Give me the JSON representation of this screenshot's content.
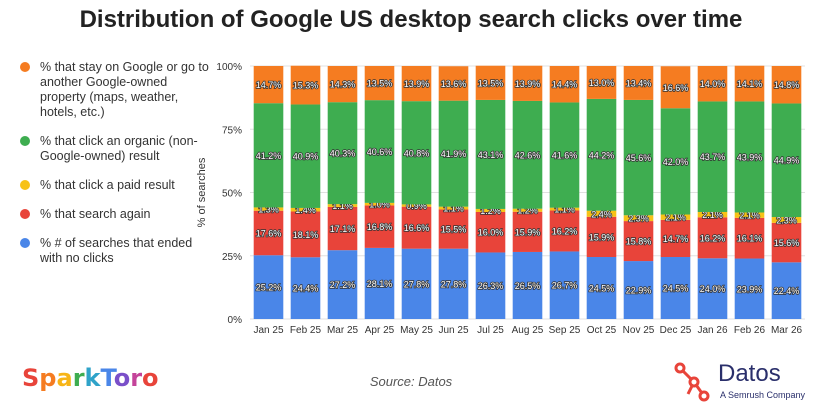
{
  "colors": {
    "stay_google": "#f57c21",
    "organic": "#3ead50",
    "paid": "#f7c217",
    "search_again": "#e8443a",
    "no_clicks": "#4a86e8",
    "grid": "#e0e0e0",
    "text": "#333333"
  },
  "legend": [
    {
      "label": "% that stay on Google or go to another Google-owned property (maps, weather, hotels, etc.)",
      "color": "#f57c21"
    },
    {
      "label": "% that click an organic (non-Google-owned) result",
      "color": "#3ead50"
    },
    {
      "label": "% that click a paid result",
      "color": "#f7c217"
    },
    {
      "label": "% that search again",
      "color": "#e8443a"
    },
    {
      "label": "% # of searches that ended with no clicks",
      "color": "#4a86e8"
    }
  ],
  "source": "Source: Datos",
  "logos": {
    "sparktoro": "SparkToro",
    "datos_name": "Datos",
    "datos_sub": "A Semrush Company"
  },
  "chart_data": {
    "type": "bar",
    "stacked": true,
    "title": "Distribution of Google US desktop search clicks over time",
    "ylabel": "% of searches",
    "xlabel": "",
    "ylim": [
      0,
      100
    ],
    "yticks": [
      "0%",
      "25%",
      "50%",
      "75%",
      "100%"
    ],
    "categories": [
      "Jan 25",
      "Feb 25",
      "Mar 25",
      "Apr 25",
      "May 25",
      "Jun 25",
      "Jul 25",
      "Aug 25",
      "Sep 25",
      "Oct 25",
      "Nov 25",
      "Dec 25",
      "Jan 26",
      "Feb 26",
      "Mar 26"
    ],
    "series": [
      {
        "name": "% # of searches that ended with no clicks",
        "color": "#4a86e8",
        "values": [
          25.2,
          24.4,
          27.2,
          28.1,
          27.8,
          27.8,
          26.3,
          26.5,
          26.7,
          24.5,
          22.9,
          24.5,
          24.0,
          23.9,
          22.4
        ]
      },
      {
        "name": "% that search again",
        "color": "#e8443a",
        "values": [
          17.6,
          18.1,
          17.1,
          16.8,
          16.6,
          15.5,
          16.0,
          15.9,
          16.2,
          15.9,
          15.8,
          14.7,
          16.2,
          16.1,
          15.6
        ]
      },
      {
        "name": "% that click a paid result",
        "color": "#f7c217",
        "values": [
          1.3,
          1.4,
          1.1,
          1.0,
          0.9,
          1.1,
          1.2,
          1.2,
          1.1,
          2.4,
          2.3,
          2.1,
          2.1,
          2.1,
          2.3
        ]
      },
      {
        "name": "% that click an organic (non-Google-owned) result",
        "color": "#3ead50",
        "values": [
          41.2,
          40.9,
          40.3,
          40.6,
          40.8,
          41.9,
          43.1,
          42.6,
          41.6,
          44.2,
          45.6,
          42.0,
          43.7,
          43.9,
          44.9
        ]
      },
      {
        "name": "% that stay on Google or go to another Google-owned property (maps, weather, hotels, etc.)",
        "color": "#f57c21",
        "values": [
          14.7,
          15.3,
          14.3,
          13.5,
          13.9,
          13.6,
          13.5,
          13.9,
          14.4,
          13.0,
          13.4,
          16.6,
          14.0,
          14.1,
          14.8
        ]
      }
    ]
  }
}
